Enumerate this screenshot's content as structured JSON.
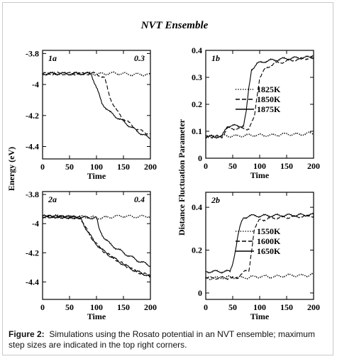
{
  "figure": {
    "title": "NVT Ensemble",
    "shared_ylabel_left": "Energy (eV)",
    "shared_ylabel_right": "Distance Fluctuation Parameter",
    "caption_label": "Figure 2:",
    "caption_text": "Simulations using the Rosato potential in an NVT ensemble; maximum step sizes are indicated in the top right corners."
  },
  "chart_data": [
    {
      "panel": "1a",
      "type": "line",
      "xlabel": "Time",
      "xlim": [
        0,
        200
      ],
      "xticks": [
        0,
        50,
        100,
        150,
        200
      ],
      "ylim": [
        -4.48,
        -3.78
      ],
      "yticks": [
        -3.8,
        -4,
        -4.2,
        -4.4
      ],
      "ytick_labels": [
        "-3.8",
        "-4",
        "-4.2",
        "-4.4"
      ],
      "annotation": "0.3",
      "series": [
        {
          "style": "dotted",
          "x": [
            0,
            50,
            100,
            150,
            200
          ],
          "y": [
            -3.93,
            -3.93,
            -3.93,
            -3.93,
            -3.94
          ]
        },
        {
          "style": "dashed",
          "x": [
            0,
            100,
            115,
            125,
            135,
            150,
            175,
            200
          ],
          "y": [
            -3.93,
            -3.93,
            -3.96,
            -4.08,
            -4.16,
            -4.22,
            -4.29,
            -4.32
          ]
        },
        {
          "style": "solid",
          "x": [
            0,
            90,
            100,
            110,
            125,
            150,
            175,
            200
          ],
          "y": [
            -3.93,
            -3.93,
            -4.02,
            -4.12,
            -4.18,
            -4.24,
            -4.3,
            -4.35
          ]
        }
      ]
    },
    {
      "panel": "1b",
      "type": "line",
      "xlabel": "Time",
      "xlim": [
        0,
        200
      ],
      "xticks": [
        0,
        50,
        100,
        150,
        200
      ],
      "ylim": [
        0,
        0.4
      ],
      "yticks": [
        0,
        0.1,
        0.2,
        0.3,
        0.4
      ],
      "ytick_labels": [
        "0",
        "0.1",
        "0.2",
        "0.3",
        "0.4"
      ],
      "legend": [
        "1825K",
        "1850K",
        "1875K"
      ],
      "series": [
        {
          "name": "1825K",
          "style": "dotted",
          "x": [
            0,
            50,
            100,
            150,
            200
          ],
          "y": [
            0.08,
            0.083,
            0.085,
            0.088,
            0.092
          ]
        },
        {
          "name": "1850K",
          "style": "dashed",
          "x": [
            0,
            30,
            40,
            80,
            90,
            95,
            100,
            110,
            125,
            150,
            200
          ],
          "y": [
            0.08,
            0.08,
            0.11,
            0.11,
            0.15,
            0.23,
            0.3,
            0.33,
            0.35,
            0.36,
            0.375
          ]
        },
        {
          "name": "1875K",
          "style": "solid",
          "x": [
            0,
            30,
            40,
            70,
            75,
            80,
            85,
            95,
            110,
            150,
            200
          ],
          "y": [
            0.08,
            0.08,
            0.12,
            0.12,
            0.17,
            0.26,
            0.33,
            0.35,
            0.36,
            0.37,
            0.375
          ]
        }
      ]
    },
    {
      "panel": "2a",
      "type": "line",
      "xlabel": "Time",
      "xlim": [
        0,
        200
      ],
      "xticks": [
        0,
        50,
        100,
        150,
        200
      ],
      "ylim": [
        -4.52,
        -3.78
      ],
      "yticks": [
        -3.8,
        -4,
        -4.2,
        -4.4
      ],
      "ytick_labels": [
        "-3.8",
        "-4",
        "-4.2",
        "-4.4"
      ],
      "annotation": "0.4",
      "series": [
        {
          "style": "dotted",
          "x": [
            0,
            50,
            100,
            150,
            200
          ],
          "y": [
            -3.95,
            -3.95,
            -3.96,
            -3.95,
            -3.95
          ]
        },
        {
          "style": "dashed",
          "x": [
            0,
            70,
            80,
            95,
            110,
            125,
            150,
            175,
            200
          ],
          "y": [
            -3.95,
            -3.96,
            -4.03,
            -4.12,
            -4.18,
            -4.22,
            -4.28,
            -4.33,
            -4.36
          ]
        },
        {
          "style": "solid",
          "x": [
            0,
            70,
            80,
            95,
            110,
            125,
            150,
            175,
            200
          ],
          "y": [
            -3.95,
            -3.96,
            -4.03,
            -4.12,
            -4.18,
            -4.22,
            -4.28,
            -4.33,
            -4.36
          ]
        },
        {
          "style": "solid",
          "x": [
            0,
            100,
            105,
            115,
            125,
            150,
            175,
            200
          ],
          "y": [
            -3.95,
            -3.96,
            -4.04,
            -4.1,
            -4.14,
            -4.2,
            -4.25,
            -4.29
          ]
        }
      ]
    },
    {
      "panel": "2b",
      "type": "line",
      "xlabel": "Time",
      "xlim": [
        0,
        200
      ],
      "xticks": [
        0,
        50,
        100,
        150,
        200
      ],
      "ylim": [
        -0.03,
        0.47
      ],
      "yticks": [
        0,
        0.2,
        0.4
      ],
      "ytick_labels": [
        "0",
        "0.2",
        "0.4"
      ],
      "legend": [
        "1550K",
        "1600K",
        "1650K"
      ],
      "series": [
        {
          "name": "1550K",
          "style": "dotted",
          "x": [
            0,
            50,
            100,
            150,
            200
          ],
          "y": [
            0.07,
            0.072,
            0.075,
            0.08,
            0.085
          ]
        },
        {
          "name": "1600K",
          "style": "dashed",
          "x": [
            0,
            60,
            65,
            70,
            80,
            85,
            90,
            100,
            125,
            200
          ],
          "y": [
            0.07,
            0.07,
            0.09,
            0.1,
            0.1,
            0.2,
            0.3,
            0.34,
            0.35,
            0.36
          ]
        },
        {
          "name": "1650K",
          "style": "solid",
          "x": [
            0,
            45,
            50,
            55,
            60,
            65,
            70,
            80,
            100,
            200
          ],
          "y": [
            0.1,
            0.1,
            0.14,
            0.2,
            0.27,
            0.32,
            0.35,
            0.36,
            0.36,
            0.365
          ]
        }
      ]
    }
  ]
}
